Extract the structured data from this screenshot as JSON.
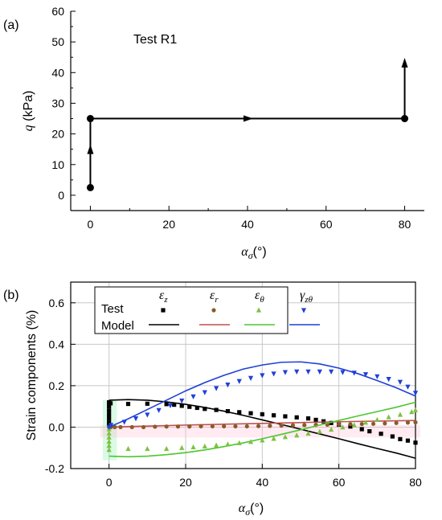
{
  "chart_data": [
    {
      "type": "line",
      "panel_label": "(a)",
      "annotation": "Test R1",
      "ylabel_symbol": "q",
      "ylabel_unit": " (kPa)",
      "xlabel_symbol": "α",
      "xlabel_sub": "σ",
      "xlabel_unit": "(°)",
      "xlim": [
        -5,
        85
      ],
      "ylim": [
        -5,
        60
      ],
      "xticks": [
        0,
        20,
        40,
        60,
        80
      ],
      "yticks": [
        0,
        10,
        20,
        30,
        40,
        50,
        60
      ],
      "grid": false,
      "path_points": [
        {
          "x": 0,
          "y": 2.5
        },
        {
          "x": 0,
          "y": 25
        },
        {
          "x": 80,
          "y": 25
        }
      ],
      "final_arrow": {
        "x": 80,
        "y_from": 25,
        "y_to": 44
      }
    },
    {
      "type": "scatter",
      "panel_label": "(b)",
      "ylabel": "Strain components (%)",
      "xlabel_symbol": "α",
      "xlabel_sub": "σ",
      "xlabel_unit": "(°)",
      "xlim": [
        -10,
        80
      ],
      "ylim": [
        -0.2,
        0.7
      ],
      "xticks": [
        0,
        20,
        40,
        60,
        80
      ],
      "yticks": [
        -0.2,
        0.0,
        0.2,
        0.4,
        0.6
      ],
      "ytick_labels": [
        "-0.2",
        "0.0",
        "0.2",
        "0.4",
        "0.6"
      ],
      "grid": true,
      "legend": {
        "position": "top-left",
        "row_labels": [
          "Test",
          "Model"
        ]
      },
      "series": [
        {
          "name": "ε",
          "sub": "z",
          "color": "#000000",
          "marker": "square",
          "points": [
            [
              0,
              0.12
            ],
            [
              0,
              0.1
            ],
            [
              0,
              0.08
            ],
            [
              0,
              0.06
            ],
            [
              0,
              0.04
            ],
            [
              0,
              0.02
            ],
            [
              0.4,
              0.115
            ],
            [
              5,
              0.112
            ],
            [
              10,
              0.113
            ],
            [
              15,
              0.111
            ],
            [
              17,
              0.108
            ],
            [
              19,
              0.103
            ],
            [
              21,
              0.098
            ],
            [
              23,
              0.093
            ],
            [
              25,
              0.088
            ],
            [
              28,
              0.083
            ],
            [
              31,
              0.077
            ],
            [
              34,
              0.072
            ],
            [
              37,
              0.067
            ],
            [
              40,
              0.062
            ],
            [
              43,
              0.057
            ],
            [
              46,
              0.052
            ],
            [
              49,
              0.047
            ],
            [
              52,
              0.042
            ],
            [
              54,
              0.035
            ],
            [
              56,
              0.028
            ],
            [
              58,
              0.02
            ],
            [
              60,
              0.012
            ],
            [
              63,
              0.003
            ],
            [
              66,
              -0.01
            ],
            [
              68,
              -0.02
            ],
            [
              71,
              -0.032
            ],
            [
              74,
              -0.045
            ],
            [
              76,
              -0.058
            ],
            [
              78,
              -0.065
            ],
            [
              80,
              -0.075
            ]
          ],
          "model": [
            [
              0,
              0.13
            ],
            [
              5,
              0.133
            ],
            [
              10,
              0.13
            ],
            [
              15,
              0.122
            ],
            [
              20,
              0.11
            ],
            [
              25,
              0.095
            ],
            [
              30,
              0.077
            ],
            [
              35,
              0.057
            ],
            [
              40,
              0.035
            ],
            [
              45,
              0.013
            ],
            [
              50,
              -0.01
            ],
            [
              55,
              -0.033
            ],
            [
              60,
              -0.056
            ],
            [
              65,
              -0.08
            ],
            [
              70,
              -0.103
            ],
            [
              75,
              -0.125
            ],
            [
              80,
              -0.15
            ]
          ]
        },
        {
          "name": "ε",
          "sub": "r",
          "color": "#8B5A2B",
          "model_color": "#C0504D",
          "marker": "circle",
          "points": [
            [
              0,
              0.0
            ],
            [
              0.5,
              0.0
            ],
            [
              1.5,
              0.0
            ],
            [
              3,
              0.0
            ],
            [
              6,
              0.0
            ],
            [
              9,
              0.0
            ],
            [
              12,
              0.002
            ],
            [
              15,
              0.003
            ],
            [
              18,
              0.003
            ],
            [
              21,
              0.003
            ],
            [
              24,
              0.004
            ],
            [
              27,
              0.004
            ],
            [
              30,
              0.004
            ],
            [
              33,
              0.004
            ],
            [
              36,
              0.004
            ],
            [
              39,
              0.005
            ],
            [
              42,
              0.006
            ],
            [
              45,
              0.007
            ],
            [
              48,
              0.009
            ],
            [
              51,
              0.01
            ],
            [
              54,
              0.011
            ],
            [
              57,
              0.012
            ],
            [
              60,
              0.013
            ],
            [
              63,
              0.014
            ],
            [
              66,
              0.015
            ],
            [
              69,
              0.016
            ],
            [
              72,
              0.018
            ],
            [
              75,
              0.02
            ],
            [
              78,
              0.022
            ],
            [
              80,
              0.023
            ]
          ],
          "model": [
            [
              0,
              0.0
            ],
            [
              10,
              0.005
            ],
            [
              20,
              0.01
            ],
            [
              30,
              0.014
            ],
            [
              40,
              0.018
            ],
            [
              50,
              0.022
            ],
            [
              60,
              0.026
            ],
            [
              70,
              0.029
            ],
            [
              80,
              0.032
            ]
          ]
        },
        {
          "name": "ε",
          "sub": "θ",
          "color": "#7DC242",
          "model_color": "#4CC72E",
          "marker": "triangle-up",
          "points": [
            [
              0,
              -0.01
            ],
            [
              0,
              -0.03
            ],
            [
              0,
              -0.05
            ],
            [
              0,
              -0.07
            ],
            [
              0,
              -0.09
            ],
            [
              0,
              -0.11
            ],
            [
              5,
              -0.105
            ],
            [
              10,
              -0.105
            ],
            [
              15,
              -0.105
            ],
            [
              19,
              -0.1
            ],
            [
              22,
              -0.097
            ],
            [
              25,
              -0.093
            ],
            [
              28,
              -0.088
            ],
            [
              31,
              -0.083
            ],
            [
              34,
              -0.077
            ],
            [
              37,
              -0.071
            ],
            [
              40,
              -0.064
            ],
            [
              43,
              -0.056
            ],
            [
              46,
              -0.048
            ],
            [
              49,
              -0.04
            ],
            [
              52,
              -0.031
            ],
            [
              55,
              -0.022
            ],
            [
              58,
              -0.012
            ],
            [
              61,
              -0.001
            ],
            [
              64,
              0.01
            ],
            [
              67,
              0.022
            ],
            [
              70,
              0.035
            ],
            [
              73,
              0.048
            ],
            [
              76,
              0.06
            ],
            [
              79,
              0.073
            ],
            [
              80,
              0.082
            ]
          ],
          "model": [
            [
              0,
              -0.14
            ],
            [
              5,
              -0.143
            ],
            [
              10,
              -0.14
            ],
            [
              15,
              -0.133
            ],
            [
              20,
              -0.123
            ],
            [
              25,
              -0.11
            ],
            [
              30,
              -0.094
            ],
            [
              35,
              -0.076
            ],
            [
              40,
              -0.056
            ],
            [
              45,
              -0.035
            ],
            [
              50,
              -0.013
            ],
            [
              55,
              0.01
            ],
            [
              60,
              0.032
            ],
            [
              65,
              0.054
            ],
            [
              70,
              0.075
            ],
            [
              75,
              0.096
            ],
            [
              80,
              0.12
            ]
          ]
        },
        {
          "name": "γ",
          "sub": "zθ",
          "color": "#1F3FD8",
          "marker": "triangle-down",
          "points": [
            [
              0,
              0.0
            ],
            [
              0.5,
              0.01
            ],
            [
              4,
              0.025
            ],
            [
              7,
              0.042
            ],
            [
              10,
              0.06
            ],
            [
              13,
              0.082
            ],
            [
              16,
              0.105
            ],
            [
              19,
              0.128
            ],
            [
              22,
              0.148
            ],
            [
              25,
              0.168
            ],
            [
              28,
              0.188
            ],
            [
              31,
              0.205
            ],
            [
              34,
              0.222
            ],
            [
              37,
              0.237
            ],
            [
              40,
              0.25
            ],
            [
              43,
              0.258
            ],
            [
              46,
              0.265
            ],
            [
              49,
              0.268
            ],
            [
              52,
              0.268
            ],
            [
              55,
              0.268
            ],
            [
              58,
              0.268
            ],
            [
              61,
              0.265
            ],
            [
              64,
              0.262
            ],
            [
              67,
              0.255
            ],
            [
              70,
              0.245
            ],
            [
              73,
              0.232
            ],
            [
              76,
              0.218
            ],
            [
              78,
              0.195
            ],
            [
              80,
              0.165
            ]
          ],
          "model": [
            [
              0,
              0.0
            ],
            [
              5,
              0.04
            ],
            [
              10,
              0.085
            ],
            [
              15,
              0.13
            ],
            [
              20,
              0.175
            ],
            [
              25,
              0.215
            ],
            [
              30,
              0.25
            ],
            [
              35,
              0.28
            ],
            [
              40,
              0.3
            ],
            [
              45,
              0.313
            ],
            [
              50,
              0.315
            ],
            [
              55,
              0.305
            ],
            [
              60,
              0.285
            ],
            [
              65,
              0.258
            ],
            [
              70,
              0.225
            ],
            [
              75,
              0.19
            ],
            [
              80,
              0.15
            ]
          ]
        }
      ]
    }
  ]
}
